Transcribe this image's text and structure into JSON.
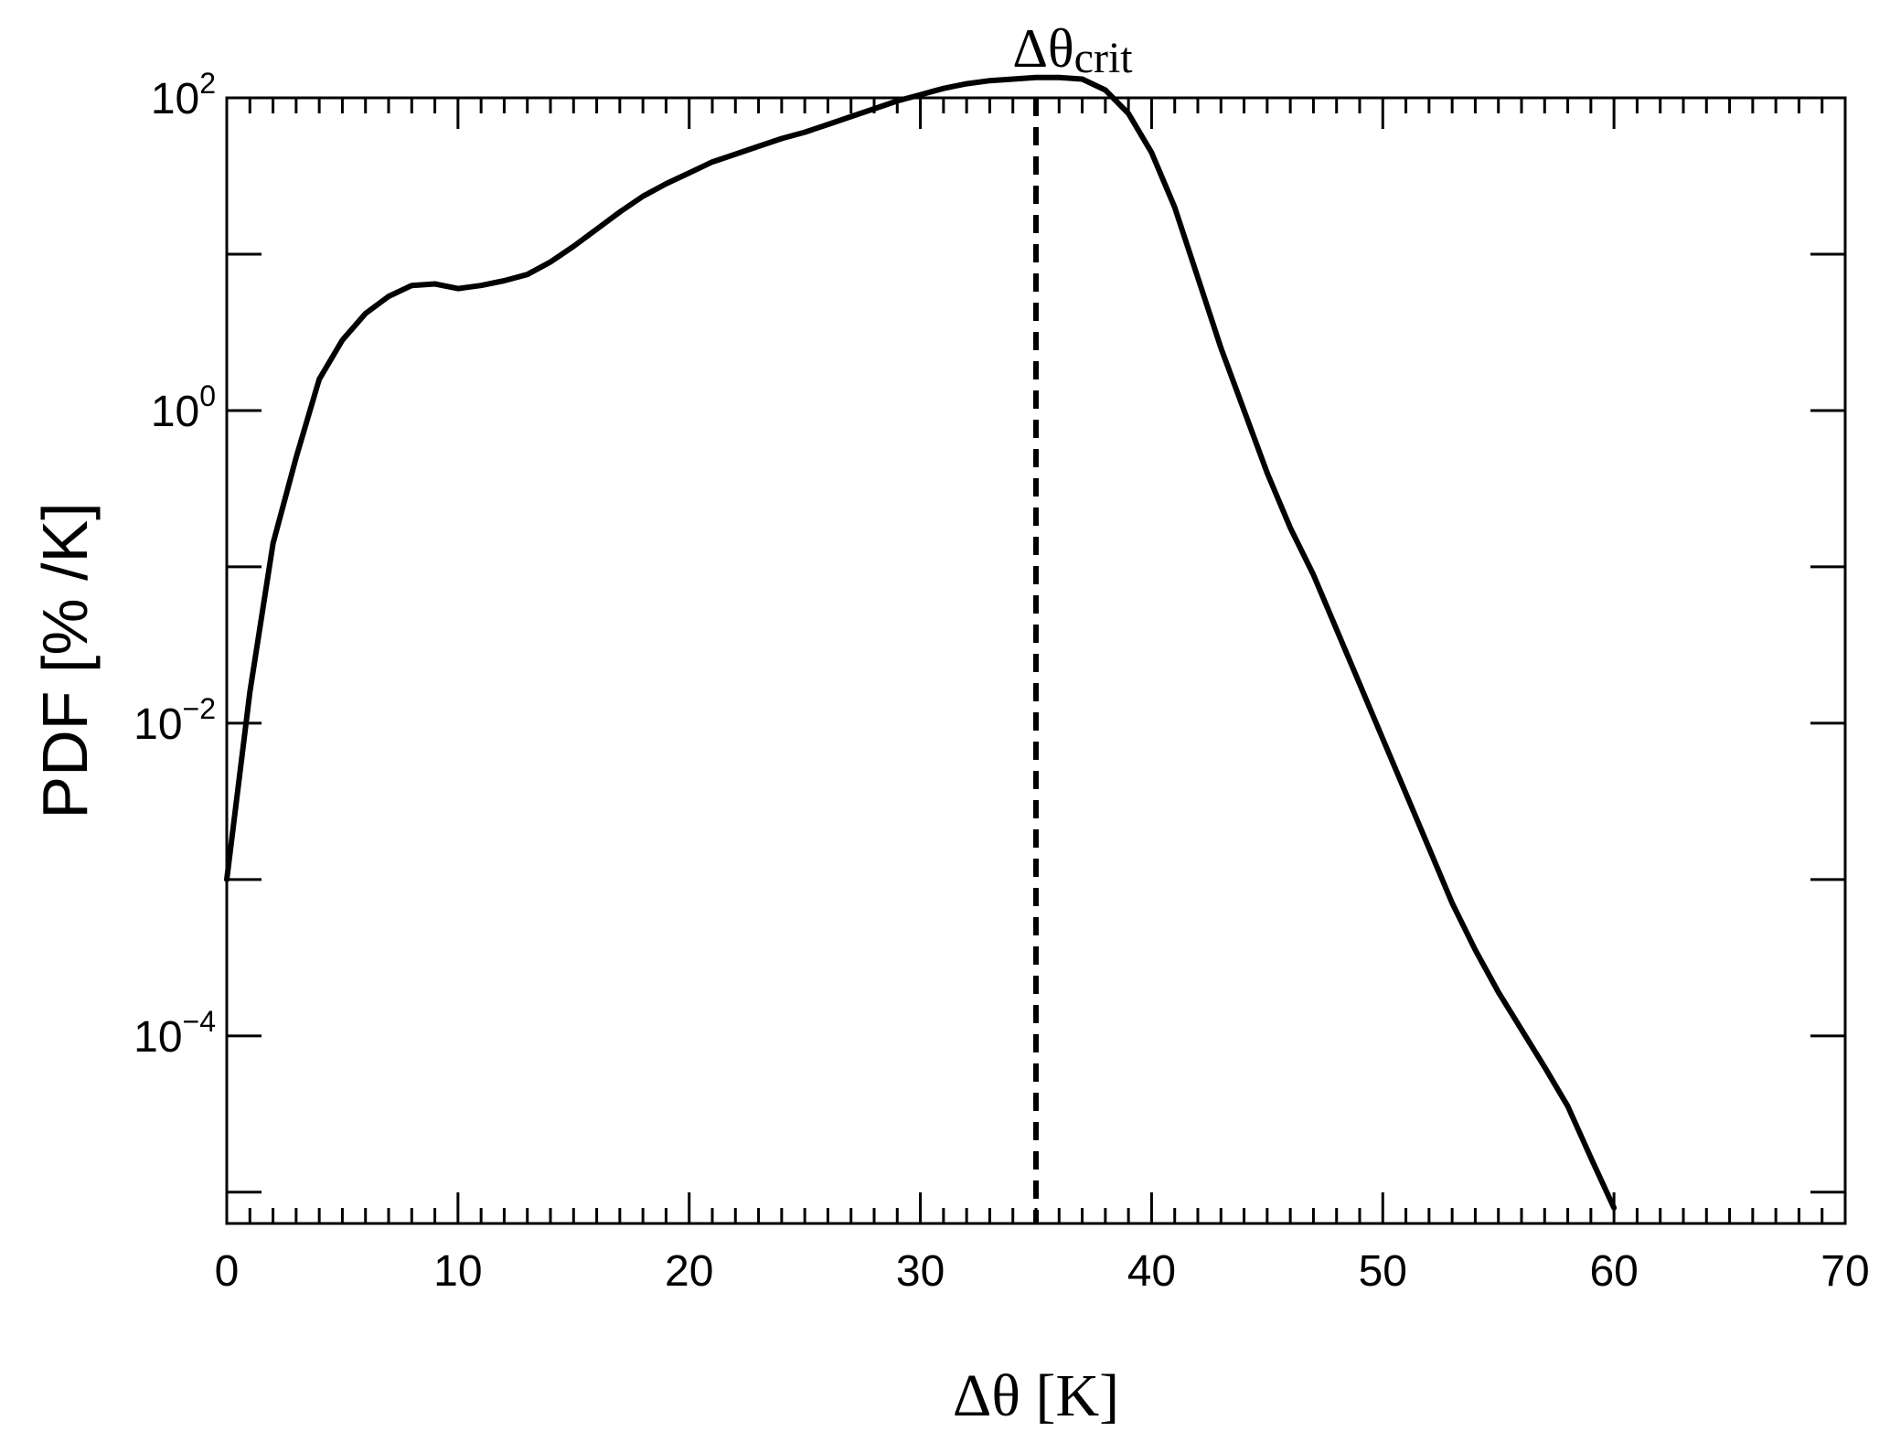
{
  "chart_data": {
    "type": "line",
    "title": "",
    "xlabel": "Δθ [K]",
    "ylabel": "PDF [% /K]",
    "xlim": [
      0,
      70
    ],
    "ylim_log10": [
      -5.2,
      2
    ],
    "yscale": "log",
    "grid": false,
    "x_ticks": [
      "0",
      "10",
      "20",
      "30",
      "40",
      "50",
      "60",
      "70"
    ],
    "y_ticks": [
      {
        "base": "10",
        "exp": "2"
      },
      {
        "base": "10",
        "exp": "0"
      },
      {
        "base": "10",
        "exp": "−2"
      },
      {
        "base": "10",
        "exp": "−4"
      }
    ],
    "annotation": {
      "main": "Δθ",
      "sub": "crit",
      "x": 35
    },
    "series": [
      {
        "color": "#000000",
        "x": [
          0,
          1,
          2,
          3,
          4,
          5,
          6,
          7,
          8,
          9,
          10,
          11,
          12,
          13,
          14,
          15,
          16,
          17,
          18,
          19,
          20,
          21,
          22,
          23,
          24,
          25,
          26,
          27,
          28,
          29,
          30,
          31,
          32,
          33,
          34,
          35,
          36,
          37,
          38,
          39,
          40,
          41,
          42,
          43,
          44,
          45,
          46,
          47,
          48,
          49,
          50,
          51,
          52,
          53,
          54,
          55,
          56,
          57,
          58,
          59,
          60
        ],
        "y_log10": [
          -3.0,
          -1.8,
          -0.85,
          -0.3,
          0.2,
          0.45,
          0.62,
          0.73,
          0.8,
          0.81,
          0.78,
          0.8,
          0.83,
          0.87,
          0.95,
          1.05,
          1.16,
          1.27,
          1.37,
          1.45,
          1.52,
          1.59,
          1.64,
          1.69,
          1.74,
          1.78,
          1.83,
          1.88,
          1.93,
          1.98,
          2.02,
          2.06,
          2.09,
          2.11,
          2.12,
          2.13,
          2.13,
          2.12,
          2.05,
          1.9,
          1.65,
          1.3,
          0.85,
          0.4,
          0.0,
          -0.4,
          -0.75,
          -1.05,
          -1.4,
          -1.75,
          -2.1,
          -2.45,
          -2.8,
          -3.15,
          -3.45,
          -3.72,
          -3.96,
          -4.2,
          -4.45,
          -4.78,
          -5.1
        ]
      }
    ]
  }
}
